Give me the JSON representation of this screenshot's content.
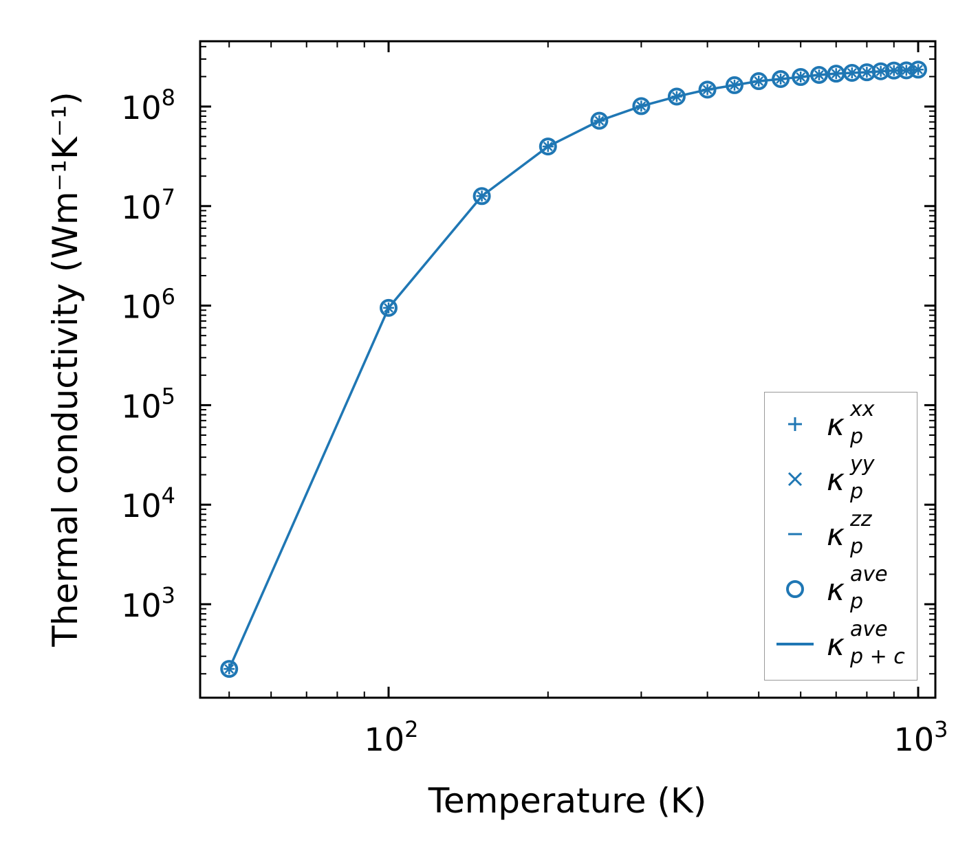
{
  "chart_data": {
    "type": "line",
    "title": "",
    "xlabel": "Temperature (K)",
    "ylabel": "Thermal conductivity (Wm⁻¹K⁻¹)",
    "xscale": "log",
    "yscale": "log",
    "xlim": [
      44,
      1077
    ],
    "ylim": [
      115,
      450000000
    ],
    "x_ticks": [
      {
        "base": "10",
        "exp": "2",
        "value": 100
      },
      {
        "base": "10",
        "exp": "3",
        "value": 1000
      }
    ],
    "y_ticks": [
      {
        "base": "10",
        "exp": "3",
        "value": 1000
      },
      {
        "base": "10",
        "exp": "4",
        "value": 10000
      },
      {
        "base": "10",
        "exp": "5",
        "value": 100000
      },
      {
        "base": "10",
        "exp": "6",
        "value": 1000000
      },
      {
        "base": "10",
        "exp": "7",
        "value": 10000000
      },
      {
        "base": "10",
        "exp": "8",
        "value": 100000000
      }
    ],
    "tick_direction": "in",
    "grid": false,
    "legend_placement": "lower-right",
    "color": "#1f77b4",
    "x": [
      50,
      100,
      150,
      200,
      250,
      300,
      350,
      400,
      450,
      500,
      550,
      600,
      650,
      700,
      750,
      800,
      850,
      900,
      950,
      1000
    ],
    "values": [
      224,
      950000,
      12600000,
      39700000,
      72000000,
      101000000,
      126000000,
      148000000,
      164000000,
      180000000,
      189000000,
      198000000,
      208000000,
      214000000,
      218000000,
      221000000,
      226000000,
      230000000,
      231000000,
      235000000
    ],
    "series": [
      {
        "name": "κ_p^xx",
        "marker": "plus",
        "line": false
      },
      {
        "name": "κ_p^yy",
        "marker": "x",
        "line": false
      },
      {
        "name": "κ_p^zz",
        "marker": "hline",
        "line": false
      },
      {
        "name": "κ_p^ave",
        "marker": "circle",
        "line": false
      },
      {
        "name": "κ_p+c^ave",
        "marker": "none",
        "line": true
      }
    ]
  },
  "legend": [
    {
      "k": "κ",
      "sub": "p",
      "sup": "xx",
      "marker": "plus"
    },
    {
      "k": "κ",
      "sub": "p",
      "sup": "yy",
      "marker": "x"
    },
    {
      "k": "κ",
      "sub": "p",
      "sup": "zz",
      "marker": "hline"
    },
    {
      "k": "κ",
      "sub": "p",
      "sup": "ave",
      "marker": "circle"
    },
    {
      "k": "κ",
      "sub": "p + c",
      "sup": "ave",
      "marker": "line"
    }
  ]
}
